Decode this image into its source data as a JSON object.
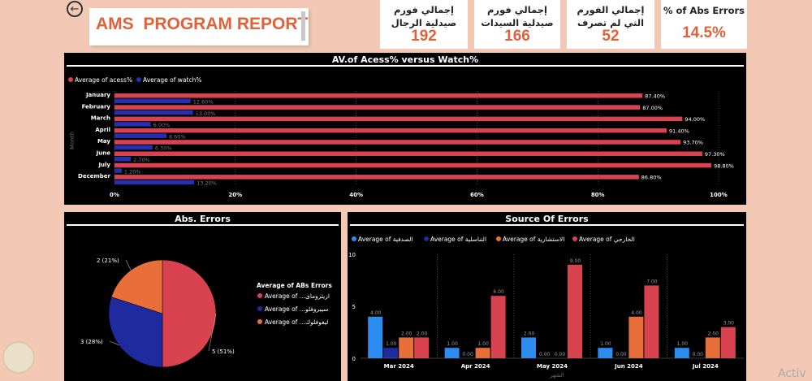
{
  "header": {
    "back_icon": "arrow-left-circle-icon",
    "title": "AMS  PROGRAM REPORT"
  },
  "kpis": [
    {
      "label": "إجمالي فورم صيدلية الرجال",
      "value": "192"
    },
    {
      "label": "إجمالي فورم صيدلية السيدات",
      "value": "166"
    },
    {
      "label": "إجمالي الفورم التي لم تصرف",
      "value": "52"
    },
    {
      "label": "% of Abs Errors",
      "value": "14.5%"
    }
  ],
  "colors": {
    "access": "#d9434f",
    "watch": "#2430b0",
    "pie_red": "#d9434f",
    "pie_blue": "#1f2a9e",
    "pie_orange": "#e86f3a",
    "src_blue": "#2d8cf0",
    "src_navy": "#1f2a9e",
    "src_orange": "#e86f3a",
    "src_red": "#d9434f"
  },
  "chart1": {
    "title": "AV.of Acess% versus Watch%",
    "legend": [
      "Average of acess%",
      "Average of watch%"
    ],
    "ylabel": "Month",
    "chart_data": {
      "type": "bar",
      "orientation": "horizontal",
      "categories": [
        "January",
        "February",
        "March",
        "April",
        "May",
        "June",
        "July",
        "December"
      ],
      "series": [
        {
          "name": "Average of acess%",
          "values": [
            87.4,
            87.0,
            94.0,
            91.4,
            93.7,
            97.3,
            98.8,
            86.8
          ],
          "labels": [
            "87.40%",
            "87.00%",
            "94.00%",
            "91.40%",
            "93.70%",
            "97.30%",
            "98.80%",
            "86.80%"
          ]
        },
        {
          "name": "Average of watch%",
          "values": [
            12.6,
            13.0,
            6.0,
            8.6,
            6.3,
            2.7,
            1.2,
            13.2
          ],
          "labels": [
            "12.60%",
            "13.00%",
            "6.00%",
            "8.60%",
            "6.30%",
            "2.70%",
            "1.20%",
            "13.20%"
          ]
        }
      ],
      "xlim": [
        0,
        100
      ],
      "xticks": [
        "0%",
        "20%",
        "40%",
        "60%",
        "80%",
        "100%"
      ],
      "grid": true
    }
  },
  "chart2": {
    "title": "Abs. Errors",
    "legend_title": "Average of ABs Errors",
    "legend": [
      "Average of ...ازيثرومای",
      "Average of ...سيبروفلو",
      "Average of ...ليفوفلوك"
    ],
    "chart_data": {
      "type": "pie",
      "slices": [
        {
          "value": 5,
          "label": "5 (51%)"
        },
        {
          "value": 3,
          "label": "3 (28%)"
        },
        {
          "value": 2,
          "label": "2 (21%)"
        }
      ]
    }
  },
  "chart3": {
    "title": "Source Of Errors",
    "legend": [
      "Average of الصدفية",
      "Average of التناسلية",
      "Average of الاستشارية",
      "Average of الخارجي"
    ],
    "xlabel": "الشهر",
    "chart_data": {
      "type": "bar",
      "categories": [
        "Mar 2024",
        "Apr 2024",
        "May 2024",
        "Jun 2024",
        "Jul 2024"
      ],
      "series": [
        {
          "name": "Average of الصدفية",
          "values": [
            4,
            1,
            2,
            1,
            1
          ]
        },
        {
          "name": "Average of التناسلية",
          "values": [
            1,
            0,
            0,
            0,
            0
          ]
        },
        {
          "name": "Average of الاستشارية",
          "values": [
            2,
            1,
            0,
            4,
            2
          ]
        },
        {
          "name": "Average of الخارجي",
          "values": [
            2,
            6,
            9,
            7,
            3
          ]
        }
      ],
      "ylim": [
        0,
        10
      ],
      "yticks": [
        "0",
        "5",
        "10"
      ],
      "grid": true
    }
  },
  "watermark": "Activ"
}
